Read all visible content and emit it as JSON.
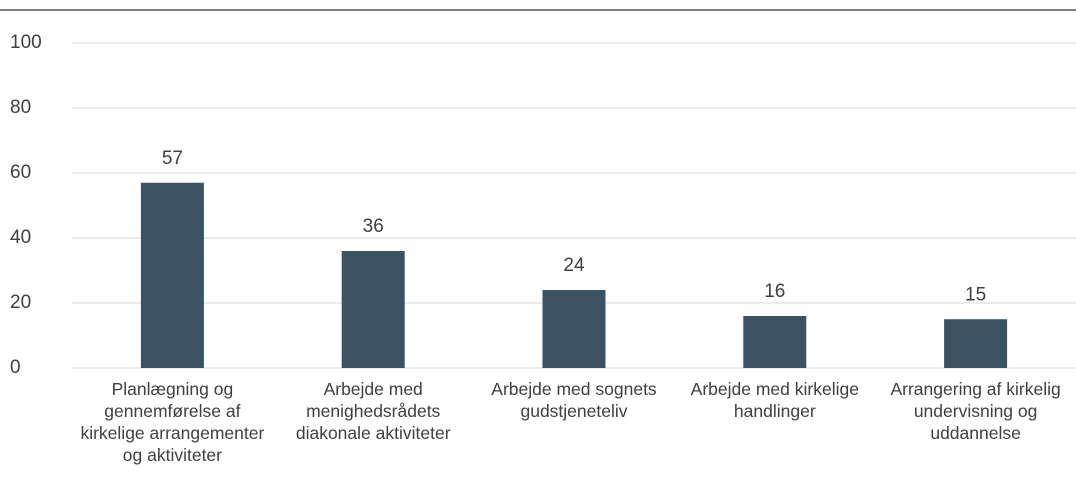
{
  "chart_data": {
    "type": "bar",
    "categories": [
      "Planlægning og gennemførelse af kirkelige arrangementer og aktiviteter",
      "Arbejde med menighedsrådets diakonale aktiviteter",
      "Arbejde med sognets gudstjeneteliv",
      "Arbejde med kirkelige handlinger",
      "Arrangering af kirkelig undervisning og uddannelse"
    ],
    "values": [
      57,
      36,
      24,
      16,
      15
    ],
    "color": "#3b5262",
    "ylim": [
      0,
      100
    ],
    "yticks": [
      0,
      20,
      40,
      60,
      80,
      100
    ],
    "grid": true
  }
}
